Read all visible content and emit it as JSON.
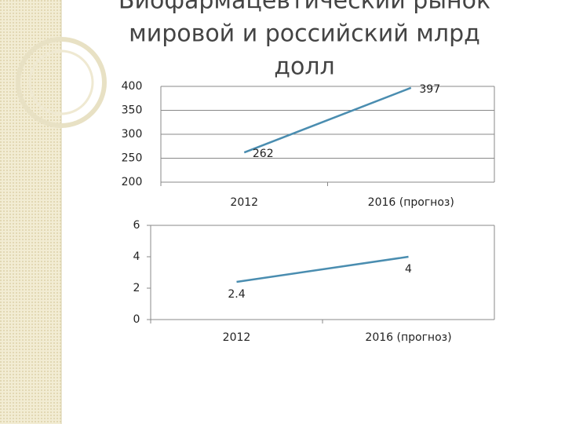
{
  "chart_data": [
    {
      "type": "line",
      "title": [
        "Биофармацевтический рынок",
        "мировой и российский млрд",
        "долл"
      ],
      "categories": [
        "2012",
        "2016 (прогноз)"
      ],
      "series": [
        {
          "color": "#4a8db0",
          "values": [
            262,
            397
          ]
        }
      ],
      "ylim": [
        200,
        400
      ],
      "yticks": [
        200,
        250,
        300,
        350,
        400
      ],
      "grid": true
    },
    {
      "type": "line",
      "categories": [
        "2012",
        "2016 (прогноз)"
      ],
      "series": [
        {
          "color": "#4a8db0",
          "values": [
            2.4,
            4
          ]
        }
      ],
      "ylim": [
        0,
        6
      ],
      "yticks": [
        0,
        2,
        4,
        6
      ],
      "grid": false
    }
  ]
}
